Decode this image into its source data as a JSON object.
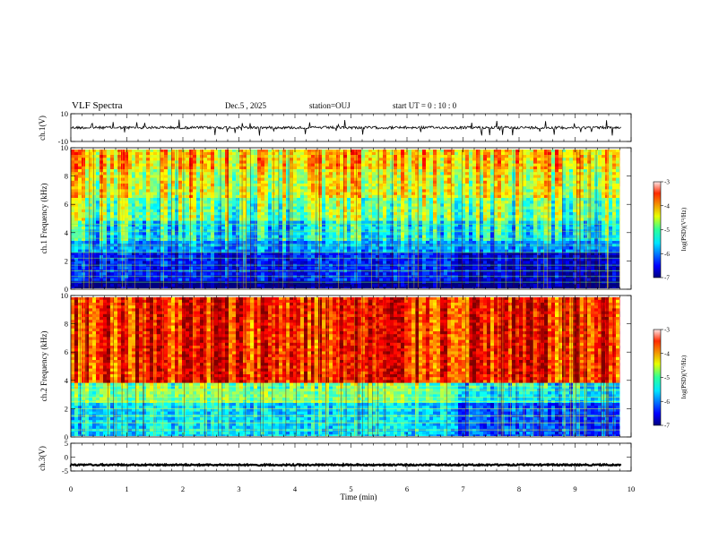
{
  "header": {
    "title": "VLF Spectra",
    "date": "Dec.5 , 2025",
    "station": "station=OUJ",
    "start_ut": "start UT = 0 : 10 : 0"
  },
  "chart_data": [
    {
      "type": "line",
      "panel": "ch1-waveform",
      "ylabel": "ch.1(V)",
      "ylim": [
        -10,
        10
      ],
      "yticks": [
        "10",
        "-10"
      ],
      "xlim": [
        0,
        10
      ],
      "baseline": 0,
      "color": "#000000"
    },
    {
      "type": "heatmap",
      "panel": "ch1-spectrogram",
      "ylabel": "ch.1 Frequency (kHz)",
      "ylim": [
        0,
        10
      ],
      "yticks": [
        "0",
        "2",
        "4",
        "6",
        "8",
        "10"
      ],
      "xlim": [
        0,
        9.8
      ],
      "colorbar": {
        "label": "log(PSD)(V²/Hz)",
        "range": [
          -7,
          -3
        ],
        "ticks": [
          "-3",
          "-4",
          "-5",
          "-6",
          "-7"
        ]
      },
      "bands": [
        {
          "from": 0,
          "to": 0.6,
          "level": -7
        },
        {
          "from": 0.6,
          "to": 2.6,
          "level": -6.4
        },
        {
          "from": 2.6,
          "to": 3.5,
          "level": -5.9
        },
        {
          "from": 3.5,
          "to": 4.8,
          "level": -5.5
        },
        {
          "from": 4.8,
          "to": 6.5,
          "level": -5.0
        },
        {
          "from": 6.5,
          "to": 8.5,
          "level": -4.6
        },
        {
          "from": 8.5,
          "to": 10,
          "level": -4.3
        }
      ]
    },
    {
      "type": "heatmap",
      "panel": "ch2-spectrogram",
      "ylabel": "ch.2 Frequency (kHz)",
      "ylim": [
        0,
        10
      ],
      "yticks": [
        "0",
        "2",
        "4",
        "6",
        "8",
        "10"
      ],
      "xlim": [
        0,
        9.8
      ],
      "colorbar": {
        "label": "log(PSD)(V²/Hz)",
        "range": [
          -7,
          -3
        ],
        "ticks": [
          "-3",
          "-4",
          "-5",
          "-6",
          "-7"
        ]
      },
      "bands": [
        {
          "from": 0,
          "to": 2.5,
          "level": -5.6
        },
        {
          "from": 2.5,
          "to": 3.8,
          "level": -5.0
        },
        {
          "from": 3.8,
          "to": 10,
          "level": -3.6
        }
      ]
    },
    {
      "type": "line",
      "panel": "ch3-waveform",
      "ylabel": "ch.3(V)",
      "ylim": [
        -5,
        5
      ],
      "yticks": [
        "5",
        "0",
        "-5"
      ],
      "xlim": [
        0,
        10
      ],
      "baseline": -2.8,
      "color": "#000000"
    }
  ],
  "xaxis": {
    "label": "Time (min)",
    "ticks": [
      "0",
      "1",
      "2",
      "3",
      "4",
      "5",
      "6",
      "7",
      "8",
      "9",
      "10"
    ]
  }
}
